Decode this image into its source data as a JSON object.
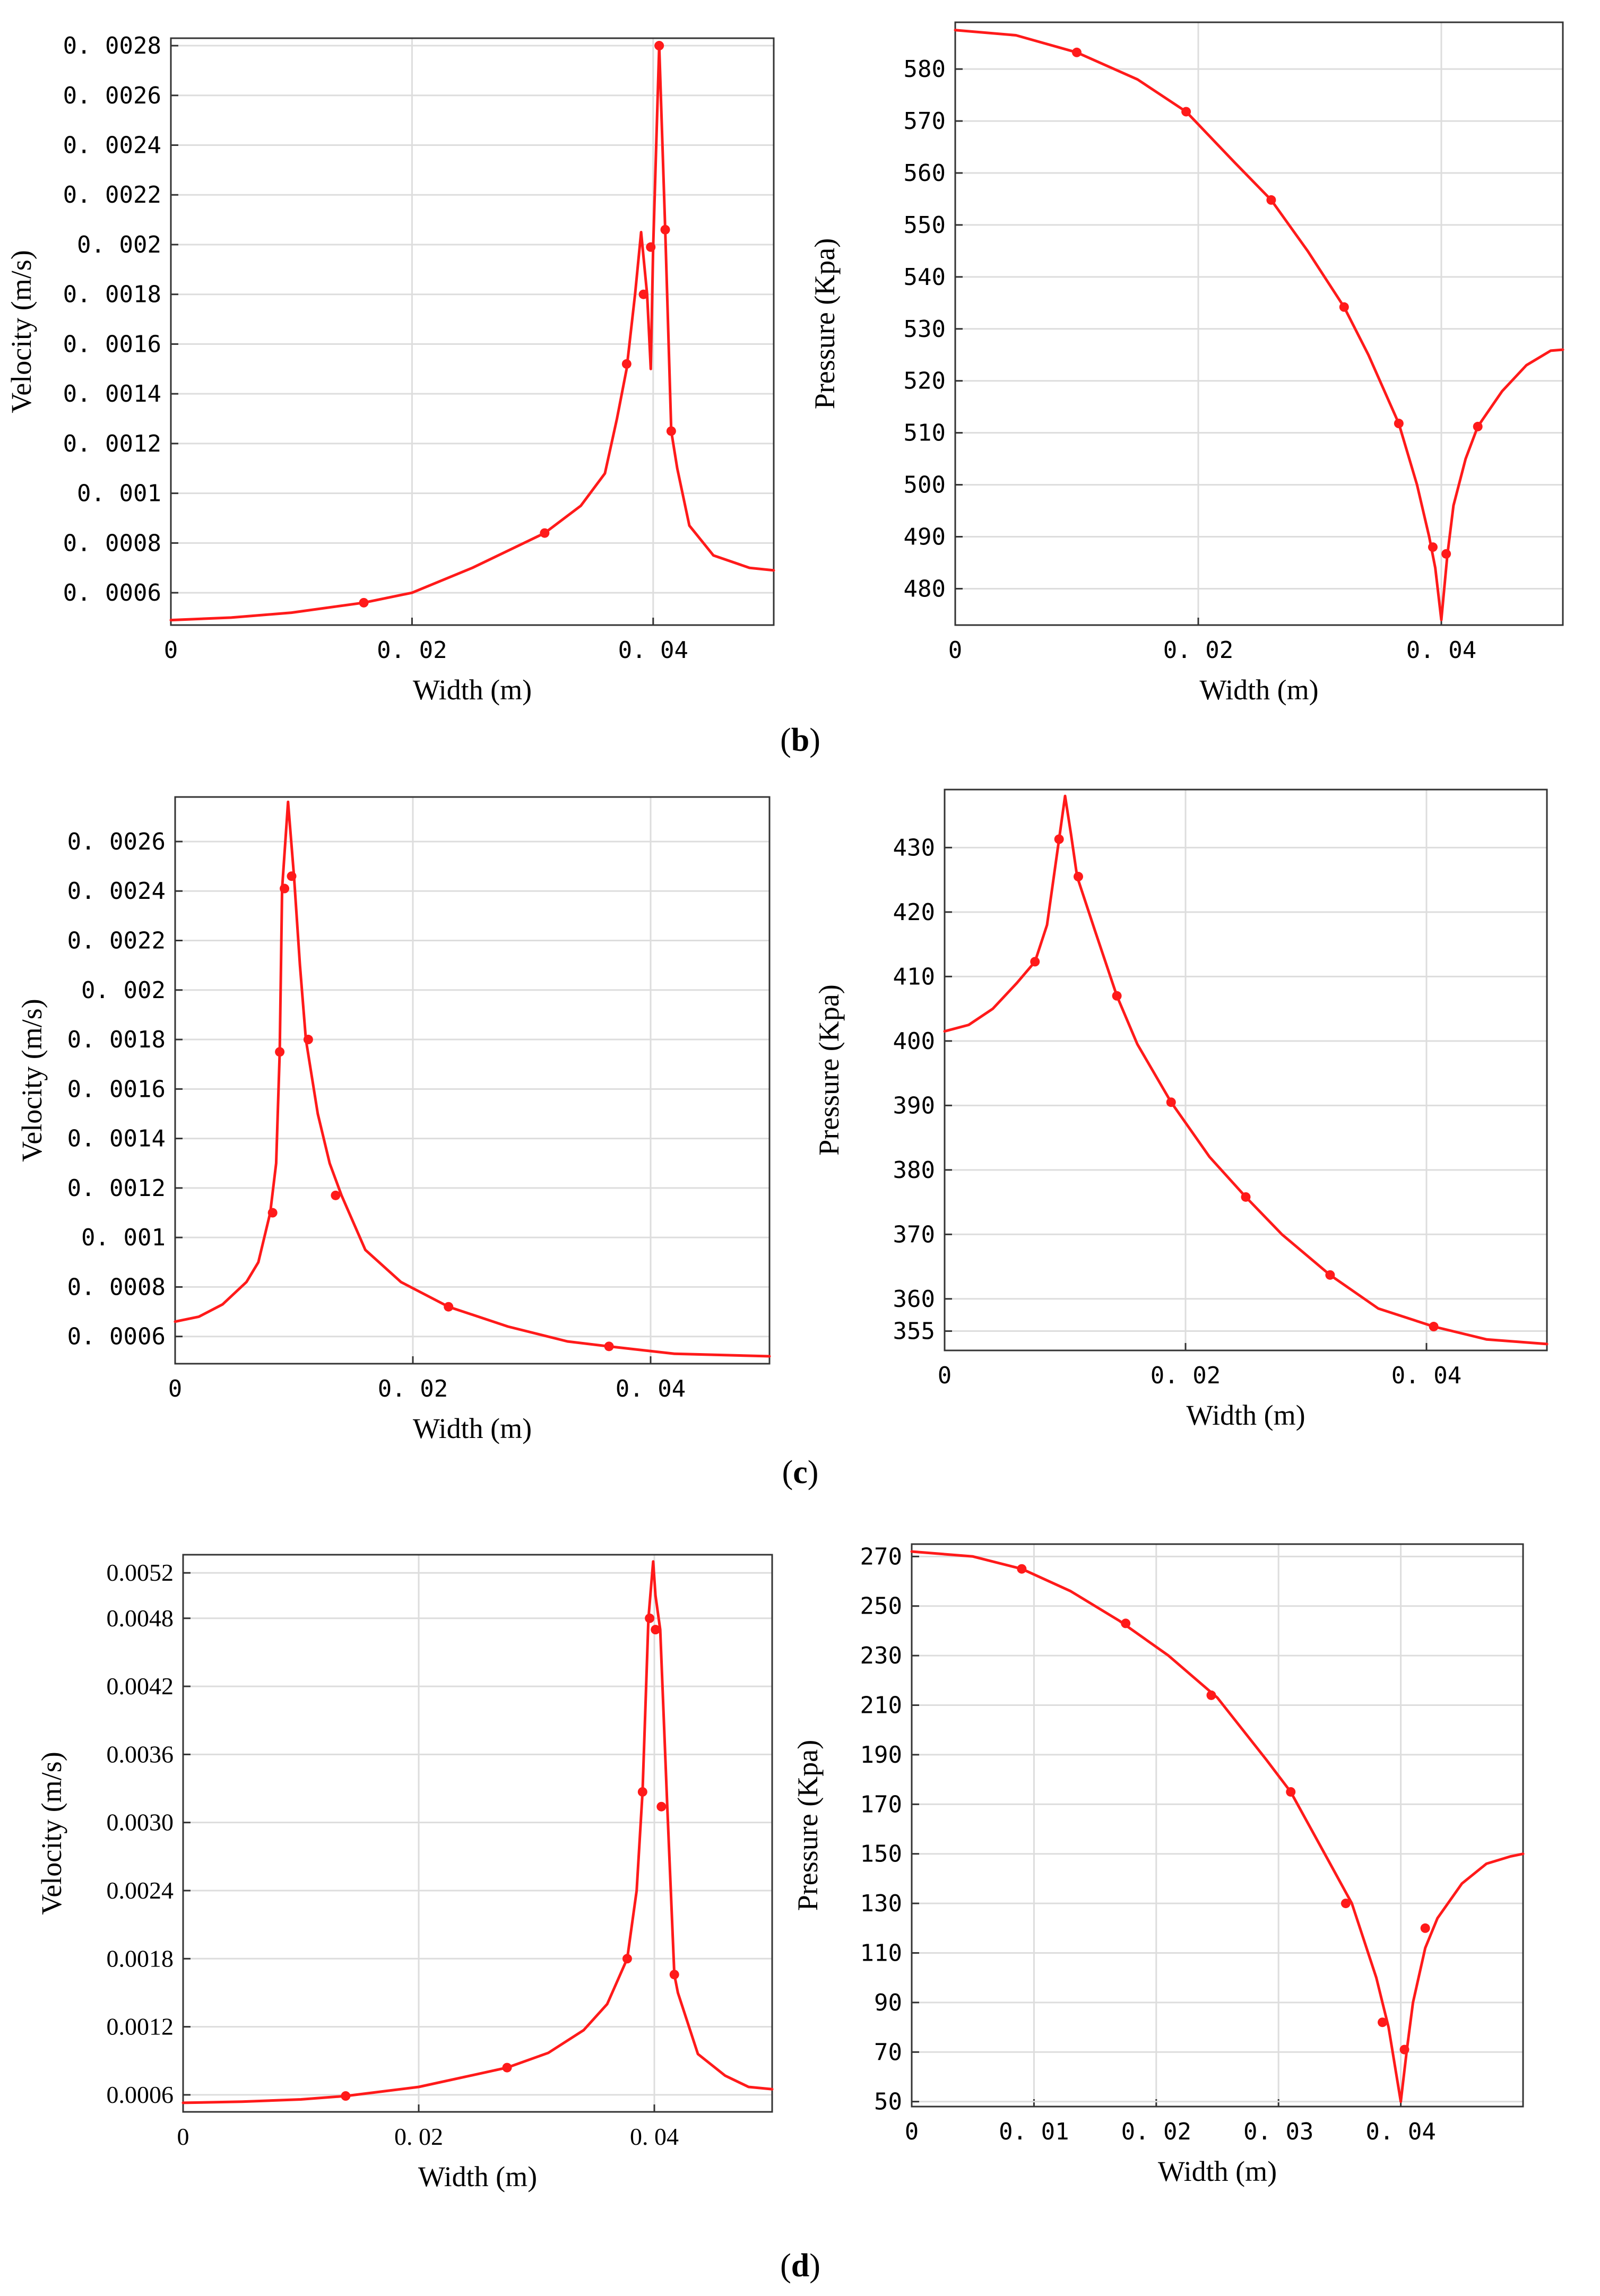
{
  "figure": {
    "captions": [
      "b",
      "c",
      "d"
    ]
  },
  "colors": {
    "series": "#ff1a1a",
    "grid": "#dddddd",
    "axis": "#333333"
  },
  "chart_data": [
    {
      "id": "b-velocity",
      "type": "line",
      "xlabel": "Width (m)",
      "ylabel": "Velocity (m/s)",
      "xlim": [
        0,
        0.05
      ],
      "ylim": [
        0.00047,
        0.00283
      ],
      "xticks": [
        0,
        0.02,
        0.04
      ],
      "xtick_labels": [
        "0",
        "0. 02",
        "0. 04"
      ],
      "yticks": [
        0.0006,
        0.0008,
        0.001,
        0.0012,
        0.0014,
        0.0016,
        0.0018,
        0.002,
        0.0022,
        0.0024,
        0.0026,
        0.0028
      ],
      "ytick_labels": [
        "0. 0006",
        "0. 0008",
        "0. 001",
        "0. 0012",
        "0. 0014",
        "0. 0016",
        "0. 0018",
        "0. 002",
        "0. 0022",
        "0. 0024",
        "0. 0026",
        "0. 0028"
      ],
      "series": [
        {
          "name": "velocity",
          "x": [
            0,
            0.005,
            0.01,
            0.016,
            0.02,
            0.025,
            0.031,
            0.034,
            0.036,
            0.037,
            0.0378,
            0.0385,
            0.039,
            0.0395,
            0.0398,
            0.04,
            0.0405,
            0.041,
            0.0415,
            0.042,
            0.043,
            0.045,
            0.048,
            0.05
          ],
          "y": [
            0.00049,
            0.0005,
            0.00052,
            0.00056,
            0.0006,
            0.0007,
            0.00084,
            0.00095,
            0.00108,
            0.0013,
            0.0015,
            0.0018,
            0.00205,
            0.0018,
            0.0015,
            0.00199,
            0.0028,
            0.00206,
            0.00125,
            0.0011,
            0.00087,
            0.00075,
            0.0007,
            0.00069
          ]
        }
      ],
      "markers": [
        [
          0.016,
          0.00056
        ],
        [
          0.031,
          0.00084
        ],
        [
          0.0378,
          0.00152
        ],
        [
          0.0392,
          0.0018
        ],
        [
          0.0398,
          0.00199
        ],
        [
          0.0405,
          0.0028
        ],
        [
          0.041,
          0.00206
        ],
        [
          0.0415,
          0.00125
        ]
      ]
    },
    {
      "id": "b-pressure",
      "type": "line",
      "xlabel": "Width (m)",
      "ylabel": "Pressure (Kpa)",
      "xlim": [
        0,
        0.05
      ],
      "ylim": [
        473,
        589
      ],
      "xticks": [
        0,
        0.02,
        0.04
      ],
      "xtick_labels": [
        "0",
        "0. 02",
        "0. 04"
      ],
      "yticks": [
        480,
        490,
        500,
        510,
        520,
        530,
        540,
        550,
        560,
        570,
        580
      ],
      "ytick_labels": [
        "480",
        "490",
        "500",
        "510",
        "520",
        "530",
        "540",
        "550",
        "560",
        "570",
        "580"
      ],
      "series": [
        {
          "name": "pressure",
          "x": [
            0,
            0.005,
            0.01,
            0.015,
            0.019,
            0.023,
            0.026,
            0.029,
            0.032,
            0.034,
            0.0365,
            0.038,
            0.039,
            0.0395,
            0.04,
            0.0405,
            0.041,
            0.042,
            0.043,
            0.045,
            0.047,
            0.049,
            0.05
          ],
          "y": [
            587.5,
            586.5,
            583.2,
            578,
            571.8,
            562,
            554.8,
            545,
            534.2,
            525,
            511.8,
            500,
            490,
            484,
            474,
            486.5,
            496,
            505,
            511.2,
            518,
            523,
            525.8,
            526
          ]
        }
      ],
      "markers": [
        [
          0.01,
          583.2
        ],
        [
          0.019,
          571.8
        ],
        [
          0.026,
          554.8
        ],
        [
          0.032,
          534.2
        ],
        [
          0.0365,
          511.8
        ],
        [
          0.0393,
          488
        ],
        [
          0.0404,
          486.7
        ],
        [
          0.043,
          511.2
        ]
      ]
    },
    {
      "id": "c-velocity",
      "type": "line",
      "xlabel": "Width (m)",
      "ylabel": "Velocity (m/s)",
      "xlim": [
        0,
        0.05
      ],
      "ylim": [
        0.00049,
        0.00278
      ],
      "xticks": [
        0,
        0.02,
        0.04
      ],
      "xtick_labels": [
        "0",
        "0. 02",
        "0. 04"
      ],
      "yticks": [
        0.0006,
        0.0008,
        0.001,
        0.0012,
        0.0014,
        0.0016,
        0.0018,
        0.002,
        0.0022,
        0.0024,
        0.0026
      ],
      "ytick_labels": [
        "0. 0006",
        "0. 0008",
        "0. 001",
        "0. 0012",
        "0. 0014",
        "0. 0016",
        "0. 0018",
        "0. 002",
        "0. 0022",
        "0. 0024",
        "0. 0026"
      ],
      "series": [
        {
          "name": "velocity",
          "x": [
            0,
            0.002,
            0.004,
            0.006,
            0.007,
            0.008,
            0.0085,
            0.0088,
            0.009,
            0.0095,
            0.01,
            0.0105,
            0.011,
            0.012,
            0.0125,
            0.013,
            0.014,
            0.016,
            0.019,
            0.023,
            0.028,
            0.033,
            0.0365,
            0.042,
            0.05
          ],
          "y": [
            0.00066,
            0.00068,
            0.00073,
            0.00082,
            0.0009,
            0.0011,
            0.0013,
            0.00175,
            0.00241,
            0.00276,
            0.00246,
            0.0021,
            0.0018,
            0.0015,
            0.0014,
            0.0013,
            0.00117,
            0.00095,
            0.00082,
            0.00072,
            0.00064,
            0.00058,
            0.00056,
            0.00053,
            0.00052
          ]
        }
      ],
      "markers": [
        [
          0.0082,
          0.0011
        ],
        [
          0.0088,
          0.00175
        ],
        [
          0.0092,
          0.00241
        ],
        [
          0.0098,
          0.00246
        ],
        [
          0.0112,
          0.0018
        ],
        [
          0.0135,
          0.00117
        ],
        [
          0.023,
          0.00072
        ],
        [
          0.0365,
          0.00056
        ]
      ]
    },
    {
      "id": "c-pressure",
      "type": "line",
      "xlabel": "Width (m)",
      "ylabel": "Pressure (Kpa)",
      "xlim": [
        0,
        0.05
      ],
      "ylim": [
        352,
        439
      ],
      "xticks": [
        0,
        0.02,
        0.04
      ],
      "xtick_labels": [
        "0",
        "0. 02",
        "0. 04"
      ],
      "yticks": [
        355,
        360,
        370,
        380,
        390,
        400,
        410,
        420,
        430
      ],
      "ytick_labels": [
        "355",
        "360",
        "370",
        "380",
        "390",
        "400",
        "410",
        "420",
        "430"
      ],
      "series": [
        {
          "name": "pressure",
          "x": [
            0,
            0.002,
            0.004,
            0.006,
            0.0075,
            0.0085,
            0.0095,
            0.01,
            0.0105,
            0.011,
            0.0125,
            0.0143,
            0.016,
            0.0188,
            0.022,
            0.025,
            0.028,
            0.032,
            0.036,
            0.0406,
            0.045,
            0.05
          ],
          "y": [
            401.5,
            402.5,
            405,
            409,
            412.3,
            418,
            431.3,
            438,
            432,
            425.5,
            417,
            407,
            399.5,
            390.5,
            382,
            375.8,
            370,
            363.7,
            358.5,
            355.7,
            353.7,
            353
          ]
        }
      ],
      "markers": [
        [
          0.0075,
          412.3
        ],
        [
          0.0095,
          431.3
        ],
        [
          0.0111,
          425.5
        ],
        [
          0.0143,
          407
        ],
        [
          0.0188,
          390.5
        ],
        [
          0.025,
          375.8
        ],
        [
          0.032,
          363.7
        ],
        [
          0.0406,
          355.7
        ]
      ]
    },
    {
      "id": "d-velocity",
      "type": "line",
      "xlabel": "Width (m)",
      "ylabel": "Velocity (m/s)",
      "xlim": [
        0,
        0.05
      ],
      "ylim": [
        0.00045,
        0.00536
      ],
      "xticks": [
        0,
        0.02,
        0.04
      ],
      "xtick_labels": [
        "0",
        "0. 02",
        "0. 04"
      ],
      "yticks": [
        0.0006,
        0.0012,
        0.0018,
        0.0024,
        0.003,
        0.0036,
        0.0042,
        0.0048,
        0.0052
      ],
      "ytick_labels": [
        "0.0006",
        "0.0012",
        "0.0018",
        "0.0024",
        "0.0030",
        "0.0036",
        "0.0042",
        "0.0048",
        "0.0052"
      ],
      "series": [
        {
          "name": "velocity",
          "x": [
            0,
            0.005,
            0.01,
            0.0138,
            0.02,
            0.0275,
            0.031,
            0.034,
            0.036,
            0.0377,
            0.0385,
            0.039,
            0.0395,
            0.0399,
            0.0401,
            0.0405,
            0.0411,
            0.0417,
            0.042,
            0.0437,
            0.046,
            0.048,
            0.05
          ],
          "y": [
            0.00053,
            0.00054,
            0.00056,
            0.00059,
            0.00067,
            0.00084,
            0.00097,
            0.00117,
            0.0014,
            0.0018,
            0.0024,
            0.00327,
            0.0048,
            0.0053,
            0.005,
            0.0047,
            0.00314,
            0.00166,
            0.0015,
            0.00096,
            0.00077,
            0.00067,
            0.00065
          ]
        }
      ],
      "markers": [
        [
          0.0138,
          0.00059
        ],
        [
          0.0275,
          0.00084
        ],
        [
          0.0377,
          0.0018
        ],
        [
          0.039,
          0.00327
        ],
        [
          0.0396,
          0.0048
        ],
        [
          0.0401,
          0.0047
        ],
        [
          0.0406,
          0.00314
        ],
        [
          0.0417,
          0.00166
        ]
      ]
    },
    {
      "id": "d-pressure",
      "type": "line",
      "xlabel": "Width (m)",
      "ylabel": "Pressure (Kpa)",
      "xlim": [
        0,
        0.05
      ],
      "ylim": [
        48,
        275
      ],
      "xticks": [
        0,
        0.01,
        0.02,
        0.03,
        0.04
      ],
      "xtick_labels": [
        "0",
        "0. 01",
        "0. 02",
        "0. 03",
        "0. 04"
      ],
      "yticks": [
        50,
        70,
        90,
        110,
        130,
        150,
        170,
        190,
        210,
        230,
        250,
        270
      ],
      "ytick_labels": [
        "50",
        "70",
        "90",
        "110",
        "130",
        "150",
        "170",
        "190",
        "210",
        "230",
        "250",
        "270"
      ],
      "series": [
        {
          "name": "pressure",
          "x": [
            0,
            0.005,
            0.009,
            0.013,
            0.017,
            0.021,
            0.025,
            0.029,
            0.031,
            0.034,
            0.036,
            0.038,
            0.0385,
            0.039,
            0.0395,
            0.04,
            0.0405,
            0.041,
            0.042,
            0.043,
            0.045,
            0.047,
            0.049,
            0.05
          ],
          "y": [
            272,
            270,
            265,
            256,
            244,
            230,
            213,
            188,
            175,
            148,
            130,
            100,
            90,
            80,
            65,
            50,
            71,
            90,
            112,
            124,
            138,
            146,
            149,
            150
          ]
        }
      ],
      "markers": [
        [
          0.009,
          265
        ],
        [
          0.0175,
          243
        ],
        [
          0.0245,
          214
        ],
        [
          0.031,
          175
        ],
        [
          0.0355,
          130
        ],
        [
          0.0385,
          82
        ],
        [
          0.0403,
          71
        ],
        [
          0.042,
          120
        ]
      ]
    }
  ]
}
